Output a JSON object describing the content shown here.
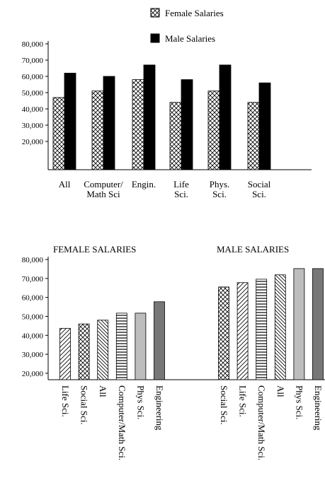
{
  "chart_data": [
    {
      "type": "bar",
      "categories": [
        "All",
        "Computer/\nMath Sci",
        "Engin.",
        "Life\nSci.",
        "Phys.\nSci.",
        "Social\nSci."
      ],
      "series": [
        {
          "name": "Female Salaries",
          "pattern": "crosshatch",
          "values": [
            47000,
            51000,
            58000,
            44000,
            51000,
            44000
          ]
        },
        {
          "name": "Male Salaries",
          "color": "#000000",
          "values": [
            62000,
            60000,
            67000,
            58000,
            67000,
            56000
          ]
        }
      ],
      "ylim": [
        2600,
        80000
      ],
      "yticks": [
        {
          "value": 20000,
          "label": "20,000"
        },
        {
          "value": 30000,
          "label": "30,000"
        },
        {
          "value": 40000,
          "label": "40,000"
        },
        {
          "value": 50000,
          "label": "50,000"
        },
        {
          "value": 60000,
          "label": "60,000"
        },
        {
          "value": 70000,
          "label": "70,000"
        },
        {
          "value": 80000,
          "label": "80,000"
        }
      ]
    },
    {
      "type": "grouped-bar",
      "groups": [
        {
          "title": "FEMALE SALARIES",
          "categories": [
            "Life Sci.",
            "Social Sci.",
            "All",
            "Computer/Math Sci.",
            "Phys Sci.",
            "Engineering"
          ],
          "values": [
            43700,
            46000,
            48000,
            51700,
            51700,
            57700
          ],
          "patterns": [
            "diagonal",
            "crosshatch",
            "backslash",
            "horizontal",
            "gray",
            "dark"
          ]
        },
        {
          "title": "MALE SALARIES",
          "categories": [
            "Social Sci.",
            "Life Sci.",
            "Computer/Math Sci.",
            "All",
            "Phys Sci.",
            "Engineering"
          ],
          "values": [
            65500,
            67800,
            69600,
            71900,
            75200,
            75200
          ],
          "patterns": [
            "crosshatch",
            "diagonal",
            "horizontal",
            "backslash",
            "gray",
            "dark"
          ]
        }
      ],
      "ylim": [
        16600,
        80000
      ],
      "yticks": [
        {
          "value": 20000,
          "label": "20,000"
        },
        {
          "value": 30000,
          "label": "30,000"
        },
        {
          "value": 40000,
          "label": "40,000"
        },
        {
          "value": 50000,
          "label": "50,000"
        },
        {
          "value": 60000,
          "label": "60,000"
        },
        {
          "value": 70000,
          "label": "70,000"
        },
        {
          "value": 80000,
          "label": "80,000"
        }
      ]
    }
  ]
}
